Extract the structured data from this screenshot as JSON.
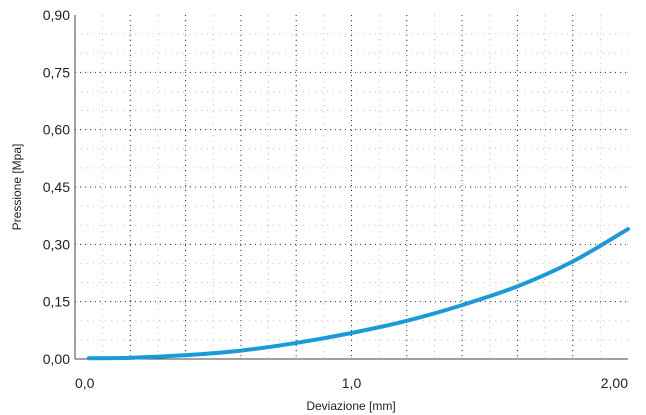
{
  "chart_data": {
    "type": "line",
    "title": "",
    "xlabel": "Deviazione [mm]",
    "ylabel": "Pressione [Mpa]",
    "xlim": [
      0,
      2
    ],
    "ylim": [
      0,
      0.9
    ],
    "x_ticks": [
      0,
      1,
      2
    ],
    "x_tick_labels": [
      "0,0",
      "1,0",
      "2,00"
    ],
    "y_ticks": [
      0,
      0.15,
      0.3,
      0.45,
      0.6,
      0.75,
      0.9
    ],
    "y_tick_labels": [
      "0,00",
      "0,15",
      "0,30",
      "0,45",
      "0,60",
      "0,75",
      "0,90"
    ],
    "grid": true,
    "legend": "none",
    "series": [
      {
        "color": "#1a9ad6",
        "x": [
          0.05,
          0.2,
          0.4,
          0.6,
          0.8,
          1.0,
          1.2,
          1.4,
          1.6,
          1.8,
          2.0
        ],
        "y": [
          0.002,
          0.003,
          0.01,
          0.022,
          0.042,
          0.068,
          0.1,
          0.141,
          0.19,
          0.255,
          0.34
        ]
      }
    ]
  }
}
